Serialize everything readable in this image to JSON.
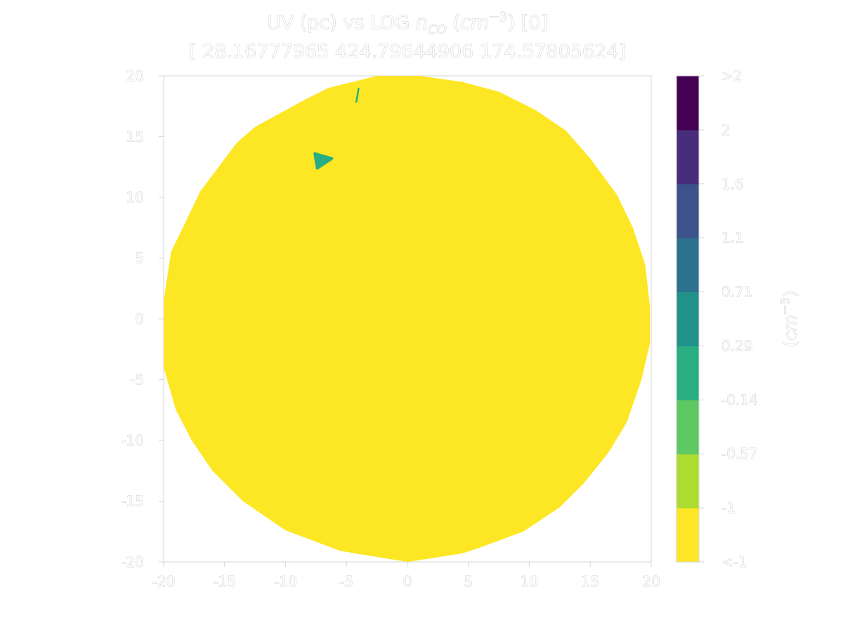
{
  "chart_data": {
    "type": "contour",
    "title_line1": "UV (pc) vs LOG n_CO (cm^-3) [0]",
    "title_line1_parts": {
      "prefix": "UV (pc) vs LOG ",
      "var": "n",
      "var_sub": "CO",
      "unit_open": " (",
      "unit": "cm",
      "unit_exp": "−3",
      "unit_close": ") [0]"
    },
    "title_line2": "[ 28.16777965 424.79644906 174.57805624]",
    "xlim": [
      -20,
      20
    ],
    "ylim": [
      -20,
      20
    ],
    "x_ticks": [
      -20,
      -15,
      -10,
      -5,
      0,
      5,
      10,
      15,
      20
    ],
    "y_ticks": [
      -20,
      -15,
      -10,
      -5,
      0,
      5,
      10,
      15,
      20
    ],
    "x_tick_labels": [
      "-20",
      "-15",
      "-10",
      "-5",
      "0",
      "5",
      "10",
      "15",
      "20"
    ],
    "y_tick_labels": [
      "-20",
      "-15",
      "-10",
      "-5",
      "0",
      "5",
      "10",
      "15",
      "20"
    ],
    "colorbar": {
      "label": "(cm^-3)",
      "label_parts": {
        "open": "(",
        "unit": "cm",
        "exp": "−3",
        "close": ")"
      },
      "levels": [
        "<-1",
        "-1",
        "-0.57",
        "-0.14",
        "0.29",
        "0.71",
        "1.1",
        "1.6",
        "2",
        ">2"
      ],
      "colors": [
        "#fde725",
        "#addc30",
        "#5ec962",
        "#28ae80",
        "#21918c",
        "#2c728e",
        "#3b528b",
        "#472d7b",
        "#440154"
      ]
    },
    "region": {
      "shape": "disk",
      "fill": "#fde725",
      "value_band": "<-1",
      "boundary": [
        [
          -2.5,
          20
        ],
        [
          1,
          20
        ],
        [
          4.5,
          19.5
        ],
        [
          7.5,
          18.7
        ],
        [
          10.5,
          17.2
        ],
        [
          13,
          15.5
        ],
        [
          15,
          13.2
        ],
        [
          17.2,
          10.2
        ],
        [
          18.5,
          7.5
        ],
        [
          19.5,
          4.5
        ],
        [
          19.9,
          1
        ],
        [
          19.9,
          -2
        ],
        [
          19.2,
          -5
        ],
        [
          18,
          -8.5
        ],
        [
          16.5,
          -11
        ],
        [
          14.5,
          -13.5
        ],
        [
          12.5,
          -15.5
        ],
        [
          9.5,
          -17.5
        ],
        [
          6,
          -18.8
        ],
        [
          4.5,
          -19.3
        ],
        [
          0,
          -20
        ],
        [
          -5.5,
          -19.1
        ],
        [
          -10,
          -17.4
        ],
        [
          -13.5,
          -15
        ],
        [
          -16,
          -12.5
        ],
        [
          -17.7,
          -10
        ],
        [
          -19,
          -7.5
        ],
        [
          -20,
          -4
        ],
        [
          -20,
          1.5
        ],
        [
          -19.4,
          5.5
        ],
        [
          -17,
          10.5
        ],
        [
          -14,
          14.5
        ],
        [
          -12.5,
          15.8
        ],
        [
          -8.5,
          18
        ],
        [
          -6.5,
          19
        ]
      ]
    },
    "features": [
      {
        "shape": "triangle",
        "color": "#28ae80",
        "points": [
          [
            -7.6,
            13.6
          ],
          [
            -6.2,
            13.2
          ],
          [
            -7.4,
            12.4
          ]
        ]
      },
      {
        "shape": "streak",
        "color": "#28ae80",
        "points": [
          [
            -4.0,
            19.0
          ],
          [
            -4.2,
            17.8
          ]
        ]
      }
    ]
  }
}
